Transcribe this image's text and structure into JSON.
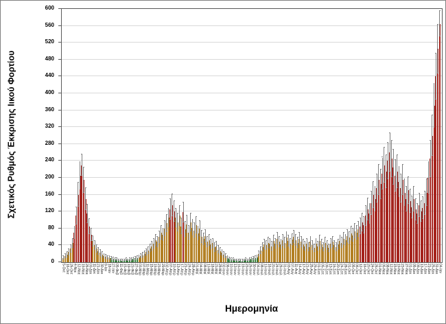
{
  "chart_data": {
    "type": "bar",
    "title": "",
    "xlabel": "Ημερομηνία",
    "ylabel": "Σχετικός Ρυθμός Έκκρισης Ιικού Φορτίου",
    "ylim": [
      0,
      600
    ],
    "y_ticks": [
      0,
      40,
      80,
      120,
      160,
      200,
      240,
      280,
      320,
      360,
      400,
      440,
      480,
      520,
      560,
      600
    ],
    "grid": "horizontal",
    "legend": "none",
    "error_bars": true,
    "colors": {
      "r": "#e5332a",
      "o": "#f9b233",
      "g": "#4cae4f",
      "error": "#7f7f7f",
      "grid": "#d9d9d9",
      "axis": "#595959"
    },
    "x_tick_labels": [
      "5-Οκτ",
      "16-Οκτ",
      "26-Οκτ",
      "4-Νοε",
      "12-Νοε",
      "19-Νοε",
      "26-Νοε",
      "03-Δεκ",
      "11-Δεκ",
      "21-Δεκ",
      "30-Δεκ",
      "8-Ιαν",
      "18-Ιαν",
      "27-Ιαν",
      "05-Φεβ",
      "11-Φεβ",
      "15-Φεβ",
      "19-Φεβ",
      "23-Φεβ",
      "27-Φεβ",
      "03-Μαρ",
      "07-Μαρ",
      "11-Μαρ",
      "15-Μαρ",
      "19-Μαρ",
      "23-Μαρ",
      "29-Μαρ",
      "02-Απρ",
      "07-Απρ",
      "10-Απρ",
      "13-Απρ",
      "17-Απρ",
      "21-Απρ",
      "24-Απρ",
      "28-Απρ",
      "01-Μαϊ",
      "04-Μαϊ",
      "08-Μαϊ",
      "13-Μαϊ",
      "18-Μαϊ",
      "23-Μαϊ",
      "28-Μαϊ",
      "02-Ιουν",
      "06-Ιουν",
      "10-Ιουν",
      "13-Ιουν",
      "16-Ιουν",
      "19-Ιουν",
      "23-Ιουν",
      "26-Ιουν",
      "30-Ιουν",
      "04-Ιουλ",
      "08-Ιουλ",
      "13-Ιουλ",
      "16-Ιουλ",
      "20-Ιουλ",
      "24-Ιουλ",
      "28-Ιουλ",
      "31-Ιουλ",
      "03-Αυγ",
      "07-Αυγ",
      "11-Αυγ",
      "14-Αυγ",
      "17-Αυγ",
      "21-Αυγ",
      "25-Αυγ",
      "29-Αυγ",
      "01-Σεπ",
      "05-Σεπ",
      "09-Σεπ",
      "13-Σεπ",
      "16-Σεπ",
      "20-Σεπ",
      "24-Σεπ",
      "28-Σεπ",
      "01-Οκτ",
      "05-Οκτ",
      "08-Οκτ",
      "12-Οκτ",
      "16-Οκτ",
      "20-Οκτ",
      "24-Οκτ",
      "28-Οκτ",
      "01-Νοε",
      "05-Νοε",
      "08-Νοε",
      "12-Νοε",
      "15-Νοε",
      "19-Νοε",
      "23-Νοε",
      "27-Νοε",
      "01-Δεκ",
      "05-Δεκ",
      "09-Δεκ",
      "13-Δεκ",
      "17-Δεκ",
      "21-Δεκ",
      "25-Δεκ",
      "31-Δεκ",
      "04-Ιαν"
    ],
    "bars": [
      [
        10,
        4,
        "o"
      ],
      [
        14,
        5,
        "o"
      ],
      [
        18,
        6,
        "o"
      ],
      [
        24,
        7,
        "o"
      ],
      [
        32,
        9,
        "o"
      ],
      [
        45,
        11,
        "o"
      ],
      [
        70,
        15,
        "r"
      ],
      [
        110,
        20,
        "r"
      ],
      [
        160,
        28,
        "r"
      ],
      [
        205,
        32,
        "r"
      ],
      [
        230,
        25,
        "r"
      ],
      [
        195,
        30,
        "r"
      ],
      [
        150,
        26,
        "r"
      ],
      [
        115,
        22,
        "r"
      ],
      [
        85,
        18,
        "r"
      ],
      [
        65,
        14,
        "r"
      ],
      [
        50,
        12,
        "o"
      ],
      [
        40,
        10,
        "o"
      ],
      [
        32,
        9,
        "o"
      ],
      [
        26,
        8,
        "o"
      ],
      [
        22,
        7,
        "o"
      ],
      [
        18,
        6,
        "o"
      ],
      [
        15,
        5,
        "o"
      ],
      [
        13,
        5,
        "o"
      ],
      [
        11,
        4,
        "o"
      ],
      [
        10,
        4,
        "o"
      ],
      [
        9,
        4,
        "g"
      ],
      [
        8,
        3,
        "g"
      ],
      [
        7,
        3,
        "g"
      ],
      [
        6,
        3,
        "g"
      ],
      [
        5,
        2,
        "g"
      ],
      [
        5,
        2,
        "g"
      ],
      [
        4,
        2,
        "g"
      ],
      [
        5,
        2,
        "g"
      ],
      [
        6,
        3,
        "g"
      ],
      [
        5,
        2,
        "g"
      ],
      [
        6,
        3,
        "g"
      ],
      [
        7,
        3,
        "g"
      ],
      [
        8,
        3,
        "g"
      ],
      [
        9,
        4,
        "g"
      ],
      [
        10,
        4,
        "g"
      ],
      [
        12,
        4,
        "o"
      ],
      [
        14,
        5,
        "o"
      ],
      [
        17,
        6,
        "o"
      ],
      [
        20,
        6,
        "o"
      ],
      [
        24,
        7,
        "o"
      ],
      [
        28,
        8,
        "o"
      ],
      [
        33,
        9,
        "o"
      ],
      [
        38,
        10,
        "o"
      ],
      [
        44,
        11,
        "o"
      ],
      [
        52,
        13,
        "o"
      ],
      [
        48,
        12,
        "o"
      ],
      [
        60,
        14,
        "o"
      ],
      [
        70,
        16,
        "o"
      ],
      [
        65,
        15,
        "o"
      ],
      [
        80,
        18,
        "o"
      ],
      [
        92,
        20,
        "o"
      ],
      [
        105,
        22,
        "o"
      ],
      [
        125,
        24,
        "r"
      ],
      [
        135,
        26,
        "r"
      ],
      [
        120,
        24,
        "r"
      ],
      [
        105,
        22,
        "o"
      ],
      [
        95,
        21,
        "o"
      ],
      [
        110,
        23,
        "o"
      ],
      [
        85,
        19,
        "o"
      ],
      [
        118,
        24,
        "r"
      ],
      [
        78,
        18,
        "o"
      ],
      [
        90,
        20,
        "o"
      ],
      [
        70,
        16,
        "o"
      ],
      [
        95,
        21,
        "o"
      ],
      [
        82,
        19,
        "o"
      ],
      [
        75,
        17,
        "o"
      ],
      [
        88,
        20,
        "o"
      ],
      [
        68,
        16,
        "o"
      ],
      [
        80,
        18,
        "o"
      ],
      [
        60,
        15,
        "o"
      ],
      [
        55,
        14,
        "o"
      ],
      [
        62,
        15,
        "o"
      ],
      [
        48,
        12,
        "o"
      ],
      [
        52,
        13,
        "o"
      ],
      [
        42,
        11,
        "o"
      ],
      [
        45,
        11,
        "o"
      ],
      [
        35,
        10,
        "o"
      ],
      [
        38,
        10,
        "o"
      ],
      [
        30,
        9,
        "o"
      ],
      [
        26,
        8,
        "o"
      ],
      [
        22,
        7,
        "o"
      ],
      [
        18,
        6,
        "o"
      ],
      [
        15,
        5,
        "o"
      ],
      [
        10,
        4,
        "g"
      ],
      [
        8,
        3,
        "g"
      ],
      [
        7,
        3,
        "g"
      ],
      [
        6,
        3,
        "g"
      ],
      [
        5,
        2,
        "g"
      ],
      [
        5,
        2,
        "g"
      ],
      [
        4,
        2,
        "g"
      ],
      [
        5,
        2,
        "g"
      ],
      [
        4,
        2,
        "g"
      ],
      [
        5,
        2,
        "g"
      ],
      [
        6,
        3,
        "g"
      ],
      [
        5,
        2,
        "g"
      ],
      [
        7,
        3,
        "g"
      ],
      [
        8,
        3,
        "g"
      ],
      [
        9,
        4,
        "g"
      ],
      [
        10,
        4,
        "g"
      ],
      [
        12,
        4,
        "g"
      ],
      [
        20,
        6,
        "o"
      ],
      [
        28,
        8,
        "o"
      ],
      [
        36,
        10,
        "o"
      ],
      [
        42,
        11,
        "o"
      ],
      [
        40,
        10,
        "o"
      ],
      [
        46,
        12,
        "o"
      ],
      [
        44,
        11,
        "o"
      ],
      [
        38,
        10,
        "o"
      ],
      [
        50,
        13,
        "o"
      ],
      [
        44,
        11,
        "o"
      ],
      [
        56,
        14,
        "o"
      ],
      [
        48,
        12,
        "o"
      ],
      [
        42,
        11,
        "o"
      ],
      [
        52,
        13,
        "o"
      ],
      [
        46,
        12,
        "o"
      ],
      [
        58,
        14,
        "o"
      ],
      [
        50,
        13,
        "o"
      ],
      [
        44,
        11,
        "o"
      ],
      [
        54,
        13,
        "o"
      ],
      [
        60,
        15,
        "o"
      ],
      [
        52,
        13,
        "o"
      ],
      [
        46,
        12,
        "o"
      ],
      [
        56,
        14,
        "o"
      ],
      [
        48,
        12,
        "o"
      ],
      [
        42,
        11,
        "o"
      ],
      [
        38,
        10,
        "o"
      ],
      [
        44,
        11,
        "o"
      ],
      [
        36,
        10,
        "o"
      ],
      [
        48,
        12,
        "o"
      ],
      [
        40,
        10,
        "o"
      ],
      [
        34,
        9,
        "o"
      ],
      [
        44,
        11,
        "o"
      ],
      [
        38,
        10,
        "o"
      ],
      [
        50,
        13,
        "o"
      ],
      [
        42,
        11,
        "o"
      ],
      [
        36,
        10,
        "o"
      ],
      [
        46,
        12,
        "o"
      ],
      [
        40,
        10,
        "o"
      ],
      [
        34,
        9,
        "o"
      ],
      [
        44,
        11,
        "o"
      ],
      [
        48,
        12,
        "o"
      ],
      [
        40,
        10,
        "o"
      ],
      [
        36,
        10,
        "o"
      ],
      [
        42,
        11,
        "o"
      ],
      [
        50,
        13,
        "o"
      ],
      [
        46,
        12,
        "o"
      ],
      [
        56,
        14,
        "o"
      ],
      [
        52,
        13,
        "o"
      ],
      [
        62,
        15,
        "o"
      ],
      [
        58,
        14,
        "o"
      ],
      [
        68,
        16,
        "o"
      ],
      [
        64,
        15,
        "o"
      ],
      [
        74,
        17,
        "o"
      ],
      [
        70,
        16,
        "o"
      ],
      [
        78,
        18,
        "o"
      ],
      [
        85,
        19,
        "r"
      ],
      [
        95,
        21,
        "r"
      ],
      [
        88,
        20,
        "r"
      ],
      [
        110,
        23,
        "r"
      ],
      [
        125,
        26,
        "r"
      ],
      [
        115,
        24,
        "r"
      ],
      [
        140,
        28,
        "r"
      ],
      [
        160,
        31,
        "r"
      ],
      [
        150,
        29,
        "r"
      ],
      [
        175,
        33,
        "r"
      ],
      [
        195,
        36,
        "r"
      ],
      [
        185,
        35,
        "r"
      ],
      [
        210,
        38,
        "r"
      ],
      [
        230,
        41,
        "r"
      ],
      [
        215,
        39,
        "r"
      ],
      [
        240,
        43,
        "r"
      ],
      [
        260,
        45,
        "r"
      ],
      [
        245,
        43,
        "r"
      ],
      [
        225,
        41,
        "r"
      ],
      [
        205,
        38,
        "r"
      ],
      [
        215,
        39,
        "r"
      ],
      [
        190,
        36,
        "r"
      ],
      [
        175,
        33,
        "r"
      ],
      [
        195,
        36,
        "r"
      ],
      [
        165,
        32,
        "r"
      ],
      [
        150,
        29,
        "r"
      ],
      [
        170,
        32,
        "r"
      ],
      [
        145,
        28,
        "r"
      ],
      [
        130,
        26,
        "r"
      ],
      [
        150,
        29,
        "r"
      ],
      [
        125,
        25,
        "r"
      ],
      [
        115,
        24,
        "r"
      ],
      [
        135,
        27,
        "r"
      ],
      [
        120,
        24,
        "r"
      ],
      [
        128,
        26,
        "r"
      ],
      [
        140,
        28,
        "r"
      ],
      [
        165,
        32,
        "r"
      ],
      [
        200,
        37,
        "r"
      ],
      [
        245,
        43,
        "r"
      ],
      [
        300,
        48,
        "r"
      ],
      [
        370,
        52,
        "r"
      ],
      [
        440,
        55,
        "r"
      ],
      [
        505,
        58,
        "r"
      ],
      [
        565,
        30,
        "r"
      ]
    ]
  }
}
